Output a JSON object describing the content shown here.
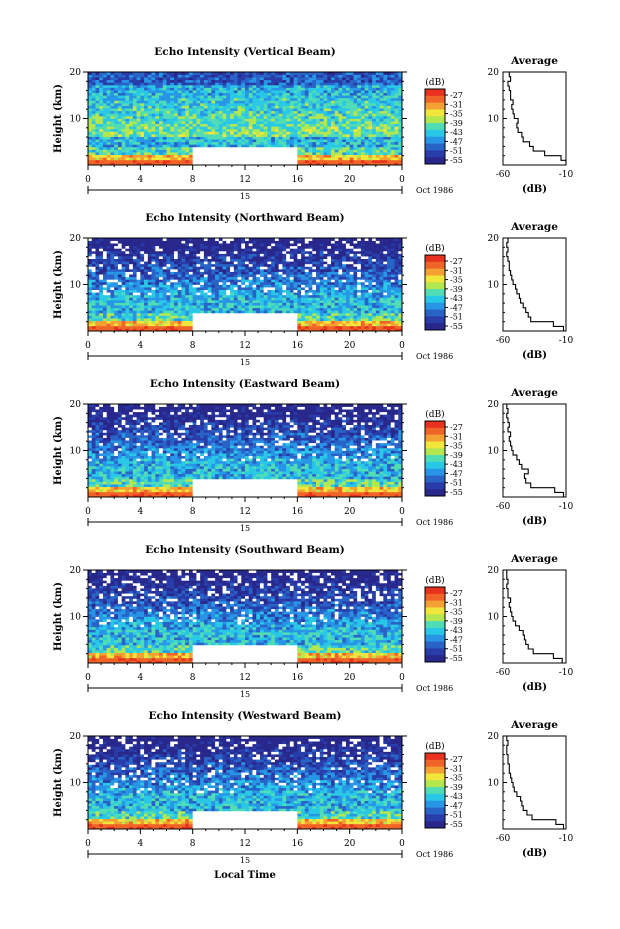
{
  "colors": {
    "colorbar": [
      "#e6321e",
      "#f06428",
      "#f5a032",
      "#f0e63c",
      "#b4e650",
      "#50dcb4",
      "#28c8e6",
      "#2896e6",
      "#2864c8",
      "#283caa",
      "#28288c"
    ],
    "missing": "#ffffff",
    "frame": "#000000",
    "profile_line": "#000000"
  },
  "shared": {
    "colorbar_title": "(dB)",
    "colorbar_ticks": [
      "-27",
      "-31",
      "-35",
      "-39",
      "-43",
      "-47",
      "-51",
      "-55"
    ],
    "y_axis_label": "Height (km)",
    "avg_title": "Average",
    "avg_x_label": "(dB)",
    "x_label": "Local Time"
  },
  "chart_data": [
    {
      "type": "heatmap",
      "title": "Echo Intensity (Vertical Beam)",
      "ylabel": "Height (km)",
      "ylim": [
        0,
        20
      ],
      "xlim": [
        0,
        24
      ],
      "xticks": [
        "0",
        "4",
        "8",
        "12",
        "16",
        "20",
        "0"
      ],
      "yticks": [
        "20",
        "10"
      ],
      "date_label": "15",
      "month_label": "Oct 1986",
      "colorbar": {
        "label": "(dB)",
        "ticks": [
          -27,
          -31,
          -35,
          -39,
          -43,
          -47,
          -51,
          -55
        ]
      },
      "no_data": {
        "x": [
          8,
          16
        ],
        "y": [
          0,
          4
        ]
      },
      "profile": {
        "title": "Average",
        "xlabel": "(dB)",
        "xlim": [
          -60,
          -10
        ],
        "xticks": [
          "-60",
          "-10"
        ],
        "ylim": [
          0,
          20
        ],
        "yticks": [
          "20",
          "10"
        ],
        "height": [
          1,
          2,
          3,
          4,
          5,
          6,
          7,
          8,
          9,
          10,
          11,
          12,
          13,
          14,
          15,
          16,
          17,
          18,
          19,
          20
        ],
        "value": [
          -10,
          -14,
          -27,
          -36,
          -39,
          -44,
          -45,
          -48,
          -49,
          -48,
          -51,
          -52,
          -53,
          -52,
          -54,
          -54,
          -55,
          -56,
          -54,
          -55
        ]
      }
    },
    {
      "type": "heatmap",
      "title": "Echo Intensity (Northward Beam)",
      "ylabel": "Height (km)",
      "ylim": [
        0,
        20
      ],
      "xlim": [
        0,
        24
      ],
      "xticks": [
        "0",
        "4",
        "8",
        "12",
        "16",
        "20",
        "0"
      ],
      "yticks": [
        "20",
        "10"
      ],
      "date_label": "15",
      "month_label": "Oct 1986",
      "colorbar": {
        "label": "(dB)",
        "ticks": [
          -27,
          -31,
          -35,
          -39,
          -43,
          -47,
          -51,
          -55
        ]
      },
      "no_data": {
        "x": [
          8,
          16
        ],
        "y": [
          0,
          4
        ]
      },
      "profile": {
        "title": "Average",
        "xlabel": "(dB)",
        "xlim": [
          -60,
          -10
        ],
        "xticks": [
          "-60",
          "-10"
        ],
        "ylim": [
          0,
          20
        ],
        "yticks": [
          "20",
          "10"
        ],
        "height": [
          1,
          2,
          3,
          4,
          5,
          6,
          7,
          8,
          9,
          10,
          11,
          12,
          13,
          14,
          15,
          16,
          17,
          18,
          19,
          20
        ],
        "value": [
          -12,
          -20,
          -38,
          -40,
          -42,
          -44,
          -46,
          -47,
          -49,
          -50,
          -52,
          -53,
          -54,
          -55,
          -55,
          -56,
          -57,
          -56,
          -57,
          -56
        ]
      }
    },
    {
      "type": "heatmap",
      "title": "Echo Intensity (Eastward Beam)",
      "ylabel": "Height (km)",
      "ylim": [
        0,
        20
      ],
      "xlim": [
        0,
        24
      ],
      "xticks": [
        "0",
        "4",
        "8",
        "12",
        "16",
        "20",
        "0"
      ],
      "yticks": [
        "20",
        "10"
      ],
      "date_label": "15",
      "month_label": "Oct 1986",
      "colorbar": {
        "label": "(dB)",
        "ticks": [
          -27,
          -31,
          -35,
          -39,
          -43,
          -47,
          -51,
          -55
        ]
      },
      "no_data": {
        "x": [
          8,
          16
        ],
        "y": [
          0,
          4
        ]
      },
      "profile": {
        "title": "Average",
        "xlabel": "(dB)",
        "xlim": [
          -60,
          -10
        ],
        "xticks": [
          "-60",
          "-10"
        ],
        "ylim": [
          0,
          20
        ],
        "yticks": [
          "20",
          "10"
        ],
        "height": [
          1,
          2,
          3,
          4,
          5,
          6,
          7,
          8,
          9,
          10,
          11,
          12,
          13,
          14,
          15,
          16,
          17,
          18,
          19,
          20
        ],
        "value": [
          -12,
          -19,
          -38,
          -42,
          -43,
          -40,
          -45,
          -47,
          -49,
          -52,
          -53,
          -54,
          -55,
          -54,
          -56,
          -55,
          -56,
          -57,
          -56,
          -57
        ]
      }
    },
    {
      "type": "heatmap",
      "title": "Echo Intensity (Southward Beam)",
      "ylabel": "Height (km)",
      "ylim": [
        0,
        20
      ],
      "xlim": [
        0,
        24
      ],
      "xticks": [
        "0",
        "4",
        "8",
        "12",
        "16",
        "20",
        "0"
      ],
      "yticks": [
        "20",
        "10"
      ],
      "date_label": "15",
      "month_label": "Oct 1986",
      "colorbar": {
        "label": "(dB)",
        "ticks": [
          -27,
          -31,
          -35,
          -39,
          -43,
          -47,
          -51,
          -55
        ]
      },
      "no_data": {
        "x": [
          8,
          16
        ],
        "y": [
          0,
          4
        ]
      },
      "profile": {
        "title": "Average",
        "xlabel": "(dB)",
        "xlim": [
          -60,
          -10
        ],
        "xticks": [
          "-60",
          "-10"
        ],
        "ylim": [
          0,
          20
        ],
        "yticks": [
          "20",
          "10"
        ],
        "height": [
          1,
          2,
          3,
          4,
          5,
          6,
          7,
          8,
          9,
          10,
          11,
          12,
          13,
          14,
          15,
          16,
          17,
          18,
          19,
          20
        ],
        "value": [
          -13,
          -20,
          -36,
          -40,
          -42,
          -43,
          -44,
          -47,
          -50,
          -52,
          -53,
          -54,
          -55,
          -54,
          -56,
          -56,
          -57,
          -56,
          -57,
          -57
        ]
      }
    },
    {
      "type": "heatmap",
      "title": "Echo Intensity (Westward Beam)",
      "ylabel": "Height (km)",
      "ylim": [
        0,
        20
      ],
      "xlim": [
        0,
        24
      ],
      "xticks": [
        "0",
        "4",
        "8",
        "12",
        "16",
        "20",
        "0"
      ],
      "yticks": [
        "20",
        "10"
      ],
      "date_label": "15",
      "month_label": "Oct 1986",
      "colorbar": {
        "label": "(dB)",
        "ticks": [
          -27,
          -31,
          -35,
          -39,
          -43,
          -47,
          -51,
          -55
        ]
      },
      "no_data": {
        "x": [
          8,
          16
        ],
        "y": [
          0,
          4
        ]
      },
      "profile": {
        "title": "Average",
        "xlabel": "(dB)",
        "xlim": [
          -60,
          -10
        ],
        "xticks": [
          "-60",
          "-10"
        ],
        "ylim": [
          0,
          20
        ],
        "yticks": [
          "20",
          "10"
        ],
        "height": [
          1,
          2,
          3,
          4,
          5,
          6,
          7,
          8,
          9,
          10,
          11,
          12,
          13,
          14,
          15,
          16,
          17,
          18,
          19,
          20
        ],
        "value": [
          -12,
          -18,
          -37,
          -41,
          -44,
          -45,
          -46,
          -49,
          -51,
          -52,
          -53,
          -54,
          -55,
          -55,
          -56,
          -56,
          -57,
          -57,
          -56,
          -57
        ]
      }
    }
  ]
}
